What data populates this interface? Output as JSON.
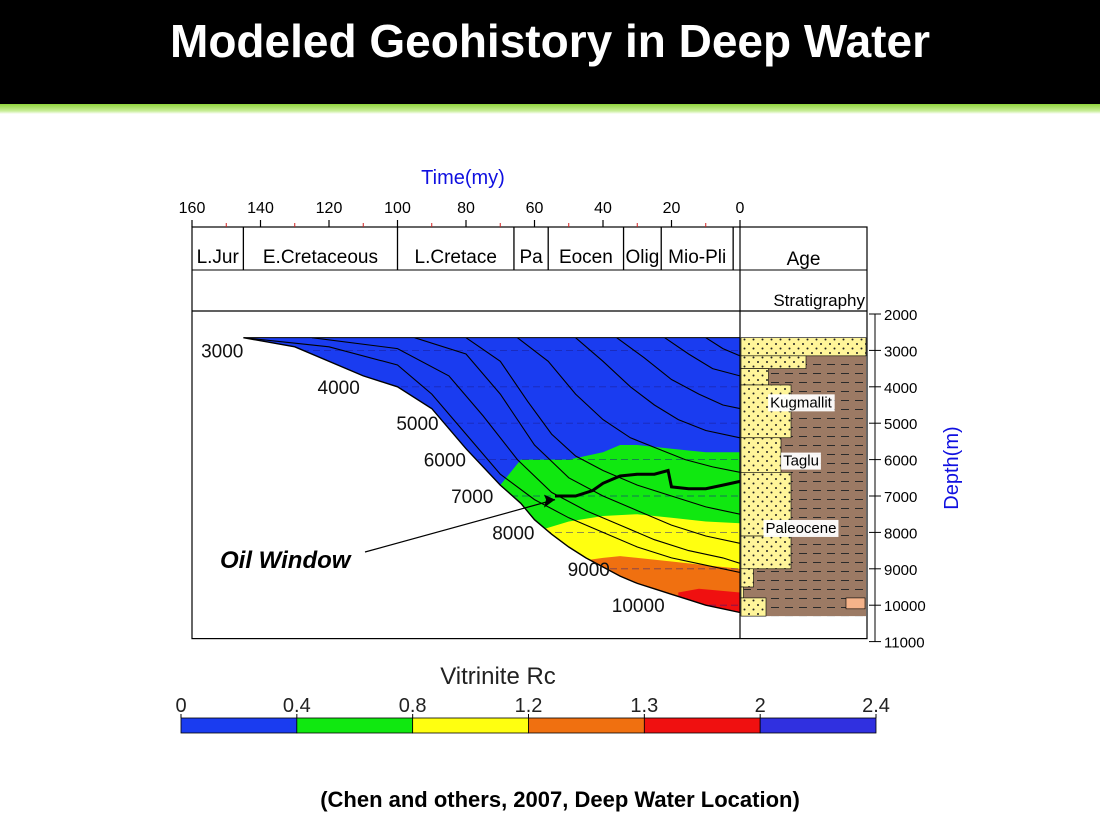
{
  "slide": {
    "title": "Modeled Geohistory in Deep Water",
    "caption": "(Chen and others, 2007, Deep Water Location)"
  },
  "colors": {
    "header_bg": "#000000",
    "accent_band": "#8fd33a",
    "axis_label_blue": "#1010e0",
    "overburden_blue": "#1a3cf0",
    "shale_brown": "#9c7a64",
    "sand_yellow": "#fff59a"
  },
  "chart_data": {
    "type": "area",
    "title": "",
    "xlabel": "Time(my)",
    "ylabel": "Depth(m)",
    "x_ticks": [
      "160",
      "140",
      "120",
      "100",
      "80",
      "60",
      "40",
      "20",
      "0"
    ],
    "x_tick_values": [
      160,
      140,
      120,
      100,
      80,
      60,
      40,
      20,
      0
    ],
    "xlim": [
      160,
      0
    ],
    "x_reversed": true,
    "y_ticks": [
      "2000",
      "3000",
      "4000",
      "5000",
      "6000",
      "7000",
      "8000",
      "9000",
      "10000",
      "11000"
    ],
    "y_tick_values": [
      2000,
      3000,
      4000,
      5000,
      6000,
      7000,
      8000,
      9000,
      10000,
      11000
    ],
    "ylim": [
      11000,
      2000
    ],
    "ages": [
      {
        "label": "L.Jur",
        "from": 160,
        "to": 145
      },
      {
        "label": "E.Cretaceous",
        "from": 145,
        "to": 100
      },
      {
        "label": "L.Cretace",
        "from": 100,
        "to": 66
      },
      {
        "label": "Pa",
        "from": 66,
        "to": 56
      },
      {
        "label": "Eocen",
        "from": 56,
        "to": 34
      },
      {
        "label": "Olig",
        "from": 34,
        "to": 23
      },
      {
        "label": "Mio-Pli",
        "from": 23,
        "to": 2
      }
    ],
    "age_panel_label": "Age",
    "stratigraphy_label": "Stratigraphy",
    "depth_labels": [
      {
        "text": "3000",
        "x": 145,
        "y": 3000
      },
      {
        "text": "4000",
        "x": 111,
        "y": 4000
      },
      {
        "text": "5000",
        "x": 88,
        "y": 5000
      },
      {
        "text": "6000",
        "x": 80,
        "y": 6000
      },
      {
        "text": "7000",
        "x": 72,
        "y": 7000
      },
      {
        "text": "8000",
        "x": 60,
        "y": 8000
      },
      {
        "text": "9000",
        "x": 38,
        "y": 9000
      },
      {
        "text": "10000",
        "x": 22,
        "y": 10000
      }
    ],
    "basement_curve": {
      "x": [
        145,
        130,
        110,
        100,
        90,
        80,
        70,
        64,
        60,
        55,
        50,
        45,
        40,
        35,
        30,
        25,
        20,
        15,
        10,
        5,
        0
      ],
      "y": [
        2650,
        2900,
        3700,
        4000,
        4600,
        5700,
        6700,
        7200,
        7650,
        8050,
        8400,
        8700,
        8950,
        9200,
        9400,
        9550,
        9700,
        9850,
        10000,
        10100,
        10200
      ]
    },
    "maturity_zones": [
      {
        "name": "0",
        "min": 0,
        "max": 0.4,
        "color": "#1a3cf0"
      },
      {
        "name": "0.4",
        "min": 0.4,
        "max": 0.8,
        "color": "#10e810"
      },
      {
        "name": "0.8",
        "min": 0.8,
        "max": 1.2,
        "color": "#ffff10"
      },
      {
        "name": "1.2",
        "min": 1.2,
        "max": 1.3,
        "color": "#f07010"
      },
      {
        "name": "1.3",
        "min": 1.3,
        "max": 2.0,
        "color": "#f01010"
      },
      {
        "name": "2",
        "min": 2.0,
        "max": 2.4,
        "color": "#3030e0"
      }
    ],
    "zone_boundaries": [
      {
        "between": "blue-green",
        "x": [
          70,
          64,
          50,
          40,
          35,
          30,
          20,
          10,
          0
        ],
        "y": [
          6700,
          6000,
          6000,
          5800,
          5600,
          5600,
          5700,
          5800,
          5800
        ]
      },
      {
        "between": "green-yellow",
        "x": [
          57,
          50,
          40,
          30,
          20,
          10,
          0
        ],
        "y": [
          7900,
          7700,
          7550,
          7500,
          7600,
          7700,
          7750
        ]
      },
      {
        "between": "yellow-orange",
        "x": [
          44,
          40,
          35,
          30,
          20,
          10,
          0
        ],
        "y": [
          8750,
          8700,
          8650,
          8700,
          8800,
          8900,
          9000
        ]
      },
      {
        "between": "orange-red",
        "x": [
          18,
          12,
          6,
          0
        ],
        "y": [
          9650,
          9550,
          9600,
          9650
        ]
      }
    ],
    "oil_window_line": {
      "x": [
        54,
        48,
        43,
        40,
        35,
        30,
        25,
        21,
        20,
        15,
        10,
        5,
        0
      ],
      "y": [
        7000,
        7000,
        6850,
        6650,
        6450,
        6400,
        6400,
        6300,
        6750,
        6800,
        6800,
        6700,
        6600
      ]
    },
    "burial_curves": [
      {
        "x": [
          145,
          120,
          100,
          90,
          80,
          70,
          60,
          50,
          40,
          30,
          20,
          10,
          0
        ],
        "y": [
          2650,
          2900,
          3400,
          4200,
          5300,
          6400,
          7100,
          7600,
          8000,
          8400,
          8700,
          8900,
          9100
        ]
      },
      {
        "x": [
          125,
          100,
          85,
          75,
          65,
          55,
          45,
          35,
          25,
          15,
          5,
          0
        ],
        "y": [
          2650,
          2950,
          3700,
          4800,
          6000,
          6900,
          7400,
          7800,
          8200,
          8500,
          8700,
          8850
        ]
      },
      {
        "x": [
          95,
          80,
          70,
          60,
          50,
          40,
          30,
          20,
          10,
          0
        ],
        "y": [
          2650,
          3100,
          4200,
          5600,
          6500,
          7000,
          7400,
          7800,
          8100,
          8300
        ]
      },
      {
        "x": [
          80,
          70,
          62,
          55,
          48,
          40,
          30,
          20,
          10,
          0
        ],
        "y": [
          2650,
          3300,
          4400,
          5300,
          5900,
          6300,
          6700,
          7000,
          7300,
          7500
        ]
      },
      {
        "x": [
          65,
          56,
          48,
          40,
          32,
          24,
          16,
          8,
          0
        ],
        "y": [
          2650,
          3300,
          4200,
          4900,
          5400,
          5700,
          6000,
          6200,
          6350
        ]
      },
      {
        "x": [
          48,
          40,
          32,
          25,
          18,
          10,
          0
        ],
        "y": [
          2650,
          3300,
          4000,
          4500,
          4900,
          5200,
          5400
        ]
      },
      {
        "x": [
          36,
          28,
          20,
          12,
          5,
          0
        ],
        "y": [
          2650,
          3200,
          3800,
          4200,
          4500,
          4600
        ]
      },
      {
        "x": [
          22,
          15,
          8,
          0
        ],
        "y": [
          2650,
          3100,
          3500,
          3700
        ]
      },
      {
        "x": [
          10,
          5,
          0
        ],
        "y": [
          2650,
          2950,
          3150
        ]
      }
    ],
    "lithology_columns": [
      {
        "name": "Kugmallit",
        "top": 3600,
        "bottom": 5400
      },
      {
        "name": "Taglu",
        "top": 5400,
        "bottom": 6500
      },
      {
        "name": "Paleocene",
        "top": 6500,
        "bottom": 9500
      }
    ],
    "annotation": {
      "text": "Oil Window",
      "target_x": 54,
      "target_y": 7100
    },
    "colorbar": {
      "label": "Vitrinite Rc",
      "tick_labels": [
        "0",
        "0.4",
        "0.8",
        "1.2",
        "1.3",
        "2",
        "2.4"
      ],
      "colors": [
        "#1a3cf0",
        "#10e810",
        "#ffff10",
        "#f07010",
        "#f01010",
        "#3030e0"
      ]
    }
  }
}
